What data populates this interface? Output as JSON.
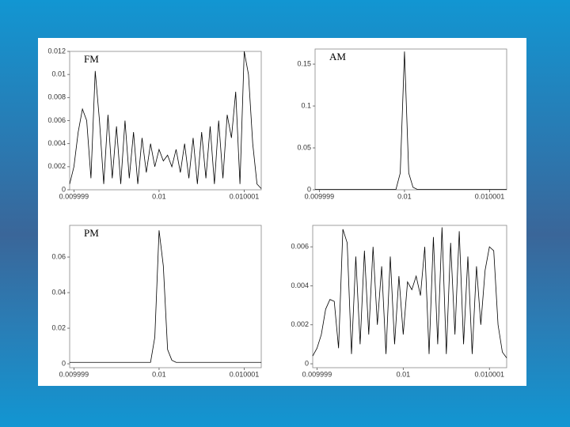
{
  "chart_data": [
    {
      "type": "line",
      "title": "FM",
      "color": "#000000",
      "x": [
        0.00999895,
        0.009999,
        0.00999905,
        0.0099991,
        0.00999915,
        0.0099992,
        0.00999925,
        0.0099993,
        0.00999935,
        0.0099994,
        0.00999945,
        0.0099995,
        0.00999955,
        0.0099996,
        0.00999965,
        0.0099997,
        0.00999975,
        0.0099998,
        0.00999985,
        0.0099999,
        0.00999995,
        0.01,
        0.01000005,
        0.0100001,
        0.01000015,
        0.0100002,
        0.01000025,
        0.0100003,
        0.01000035,
        0.0100004,
        0.01000045,
        0.0100005,
        0.01000055,
        0.0100006,
        0.01000065,
        0.0100007,
        0.01000075,
        0.0100008,
        0.01000085,
        0.0100009,
        0.01000095,
        0.010001,
        0.01000105,
        0.0100011,
        0.01000115,
        0.0100012
      ],
      "values": [
        0.0005,
        0.002,
        0.005,
        0.007,
        0.006,
        0.001,
        0.0103,
        0.006,
        0.0005,
        0.0065,
        0.001,
        0.0055,
        0.0005,
        0.006,
        0.001,
        0.005,
        0.0005,
        0.0045,
        0.0015,
        0.004,
        0.002,
        0.0035,
        0.0025,
        0.003,
        0.002,
        0.0035,
        0.0015,
        0.004,
        0.001,
        0.0045,
        0.0005,
        0.005,
        0.001,
        0.0055,
        0.0005,
        0.006,
        0.001,
        0.0065,
        0.0045,
        0.0085,
        0.0005,
        0.012,
        0.01,
        0.004,
        0.0005,
        0.0001
      ],
      "xlim": [
        0.00999895,
        0.0100012
      ],
      "xticks": [
        0.009999,
        0.01,
        0.010001
      ],
      "ylim": [
        0,
        0.012
      ],
      "yticks": [
        0,
        0.002,
        0.004,
        0.006,
        0.008,
        0.01,
        0.012
      ]
    },
    {
      "type": "line",
      "title": "AM",
      "color": "#000000",
      "x": [
        0.00999895,
        0.009999,
        0.00999905,
        0.0099991,
        0.00999915,
        0.0099992,
        0.00999925,
        0.0099993,
        0.00999935,
        0.0099994,
        0.00999945,
        0.0099995,
        0.00999955,
        0.0099996,
        0.00999965,
        0.0099997,
        0.00999975,
        0.0099998,
        0.00999985,
        0.0099999,
        0.00999995,
        0.01,
        0.01000005,
        0.0100001,
        0.01000015,
        0.0100002,
        0.01000025,
        0.0100003,
        0.01000035,
        0.0100004,
        0.01000045,
        0.0100005,
        0.01000055,
        0.0100006,
        0.01000065,
        0.0100007,
        0.01000075,
        0.0100008,
        0.01000085,
        0.0100009,
        0.01000095,
        0.010001,
        0.01000105,
        0.0100011,
        0.01000115,
        0.0100012
      ],
      "values": [
        0.0005,
        0.0005,
        0.0005,
        0.0005,
        0.0005,
        0.0005,
        0.0005,
        0.0005,
        0.0005,
        0.0005,
        0.0005,
        0.0005,
        0.0005,
        0.0005,
        0.0005,
        0.0005,
        0.0005,
        0.0005,
        0.0005,
        0.0005,
        0.02,
        0.165,
        0.02,
        0.003,
        0.0005,
        0.0005,
        0.0005,
        0.0005,
        0.0005,
        0.0005,
        0.0005,
        0.0005,
        0.0005,
        0.0005,
        0.0005,
        0.0005,
        0.0005,
        0.0005,
        0.0005,
        0.0005,
        0.0005,
        0.0005,
        0.0005,
        0.0005,
        0.0005,
        0.0005
      ],
      "xlim": [
        0.00999895,
        0.0100012
      ],
      "xticks": [
        0.009999,
        0.01,
        0.010001
      ],
      "ylim": [
        0,
        0.168
      ],
      "yticks": [
        0,
        0.05,
        0.1,
        0.15
      ]
    },
    {
      "type": "line",
      "title": "PM",
      "color": "#000000",
      "x": [
        0.00999895,
        0.009999,
        0.00999905,
        0.0099991,
        0.00999915,
        0.0099992,
        0.00999925,
        0.0099993,
        0.00999935,
        0.0099994,
        0.00999945,
        0.0099995,
        0.00999955,
        0.0099996,
        0.00999965,
        0.0099997,
        0.00999975,
        0.0099998,
        0.00999985,
        0.0099999,
        0.00999995,
        0.01,
        0.01000005,
        0.0100001,
        0.01000015,
        0.0100002,
        0.01000025,
        0.0100003,
        0.01000035,
        0.0100004,
        0.01000045,
        0.0100005,
        0.01000055,
        0.0100006,
        0.01000065,
        0.0100007,
        0.01000075,
        0.0100008,
        0.01000085,
        0.0100009,
        0.01000095,
        0.010001,
        0.01000105,
        0.0100011,
        0.01000115,
        0.0100012
      ],
      "values": [
        0.0008,
        0.0008,
        0.0008,
        0.0008,
        0.0008,
        0.0008,
        0.0008,
        0.0008,
        0.0008,
        0.0008,
        0.0008,
        0.0008,
        0.0008,
        0.0008,
        0.0008,
        0.0008,
        0.0008,
        0.0008,
        0.0008,
        0.0008,
        0.015,
        0.075,
        0.055,
        0.008,
        0.002,
        0.0008,
        0.0008,
        0.0008,
        0.0008,
        0.0008,
        0.0008,
        0.0008,
        0.0008,
        0.0008,
        0.0008,
        0.0008,
        0.0008,
        0.0008,
        0.0008,
        0.0008,
        0.0008,
        0.0008,
        0.0008,
        0.0008,
        0.0008,
        0.0008
      ],
      "xlim": [
        0.00999895,
        0.0100012
      ],
      "xticks": [
        0.009999,
        0.01,
        0.010001
      ],
      "ylim": [
        -0.0022,
        0.0778
      ],
      "yticks": [
        0,
        0.02,
        0.04,
        0.06
      ]
    },
    {
      "type": "line",
      "color": "#000000",
      "x": [
        0.00999895,
        0.009999,
        0.00999905,
        0.0099991,
        0.00999915,
        0.0099992,
        0.00999925,
        0.0099993,
        0.00999935,
        0.0099994,
        0.00999945,
        0.0099995,
        0.00999955,
        0.0099996,
        0.00999965,
        0.0099997,
        0.00999975,
        0.0099998,
        0.00999985,
        0.0099999,
        0.00999995,
        0.01,
        0.01000005,
        0.0100001,
        0.01000015,
        0.0100002,
        0.01000025,
        0.0100003,
        0.01000035,
        0.0100004,
        0.01000045,
        0.0100005,
        0.01000055,
        0.0100006,
        0.01000065,
        0.0100007,
        0.01000075,
        0.0100008,
        0.01000085,
        0.0100009,
        0.01000095,
        0.010001,
        0.01000105,
        0.0100011,
        0.01000115,
        0.0100012
      ],
      "values": [
        0.0004,
        0.0008,
        0.0015,
        0.0028,
        0.0033,
        0.0032,
        0.0008,
        0.0069,
        0.0062,
        0.0005,
        0.0055,
        0.001,
        0.0058,
        0.0015,
        0.006,
        0.002,
        0.005,
        0.0005,
        0.0055,
        0.001,
        0.0045,
        0.0015,
        0.0042,
        0.0038,
        0.0045,
        0.0035,
        0.006,
        0.0005,
        0.0065,
        0.001,
        0.007,
        0.0005,
        0.0062,
        0.0015,
        0.0068,
        0.001,
        0.0055,
        0.0005,
        0.005,
        0.002,
        0.0048,
        0.006,
        0.0058,
        0.002,
        0.0006,
        0.0003
      ],
      "xlim": [
        0.00999895,
        0.0100012
      ],
      "xticks": [
        0.009999,
        0.01,
        0.010001
      ],
      "ylim": [
        -0.0002,
        0.0071
      ],
      "yticks": [
        0,
        0.002,
        0.004,
        0.006
      ]
    }
  ]
}
